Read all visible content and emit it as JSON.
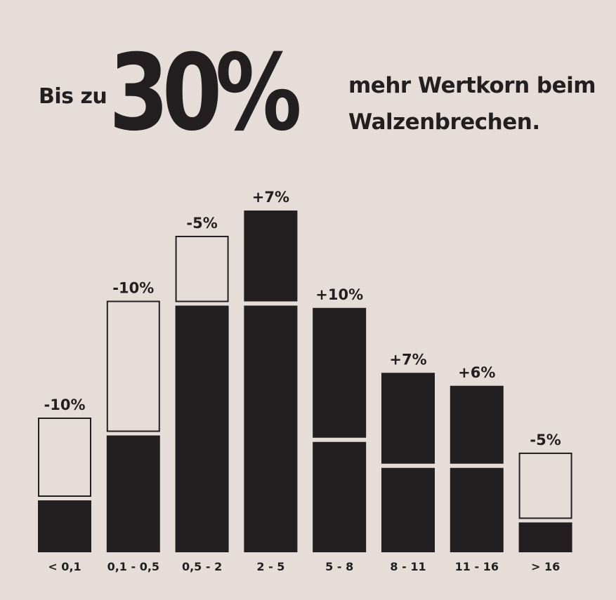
{
  "headline": {
    "prefix": "Bis zu",
    "highlight": "30%",
    "suffix_line1": "mehr Wertkorn beim",
    "suffix_line2": "Walzenbrechen."
  },
  "colors": {
    "background": "#e7ddd8",
    "bar": "#231f20"
  },
  "chart_data": {
    "type": "bar",
    "categories": [
      "< 0,1",
      "0,1 - 0,5",
      "0,5 - 2",
      "2 - 5",
      "5 - 8",
      "8 - 11",
      "11 - 16",
      "> 16"
    ],
    "series": [
      {
        "values": [
          4,
          9,
          19,
          19,
          8.5,
          6.5,
          6.5,
          2.3
        ]
      },
      {
        "values": [
          6,
          10,
          5,
          7,
          10,
          7,
          6,
          5
        ]
      }
    ],
    "data_labels": [
      "-10%",
      "-10%",
      "-5%",
      "+7%",
      "+10%",
      "+7%",
      "+6%",
      "-5%"
    ],
    "change_direction": [
      "decrease",
      "decrease",
      "decrease",
      "increase",
      "increase",
      "increase",
      "increase",
      "decrease"
    ],
    "title": "",
    "xlabel": "",
    "ylabel": "",
    "ylim": [
      0,
      26.5
    ],
    "grid": false,
    "legend": "none"
  }
}
